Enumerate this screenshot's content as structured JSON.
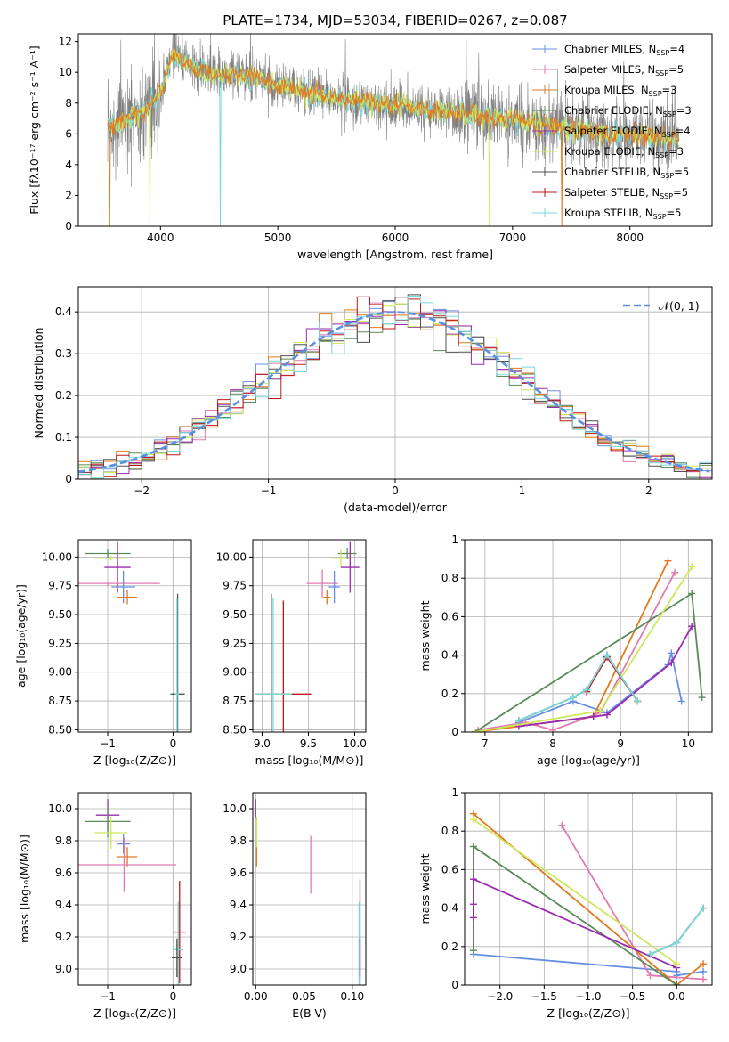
{
  "figure_title": "PLATE=1734, MJD=53034, FIBERID=0267, z=0.087",
  "colors": {
    "chabrier_miles": "#6a8fe0",
    "salpeter_miles": "#e07ab0",
    "kroupa_miles": "#e07a1f",
    "chabrier_elodie": "#5a8a5a",
    "salpeter_elodie": "#9a2ab0",
    "kroupa_elodie": "#cfe85a",
    "chabrier_stelib": "#505050",
    "salpeter_stelib": "#c01818",
    "kroupa_stelib": "#78d8d8",
    "normal": "#5b8fe0"
  },
  "chart_data": [
    {
      "type": "line",
      "id": "spectrum",
      "title": "PLATE=1734, MJD=53034, FIBERID=0267, z=0.087",
      "xlabel": "wavelength [Angstrom, rest frame]",
      "ylabel": "Flux [fλ10⁻¹⁷ erg cm⁻² s⁻¹ A⁻¹]",
      "xlim": [
        3300,
        8700
      ],
      "ylim": [
        0,
        12.5
      ],
      "xticks": [
        4000,
        5000,
        6000,
        7000,
        8000
      ],
      "yticks": [
        0,
        2,
        4,
        6,
        8,
        10,
        12
      ],
      "legend": [
        "Chabrier MILES, N_SSP=4",
        "Salpeter MILES, N_SSP=5",
        "Kroupa MILES, N_SSP=3",
        "Chabrier ELODIE, N_SSP=3",
        "Salpeter ELODIE, N_SSP=4",
        "Kroupa ELODIE, N_SSP=3",
        "Chabrier STELIB, N_SSP=5",
        "Salpeter STELIB, N_SSP=5",
        "Kroupa STELIB, N_SSP=5"
      ],
      "legend_display": [
        [
          "Chabrier MILES, N",
          "SSP",
          "=4"
        ],
        [
          "Salpeter MILES, N",
          "SSP",
          "=5"
        ],
        [
          "Kroupa MILES, N",
          "SSP",
          "=3"
        ],
        [
          "Chabrier ELODIE, N",
          "SSP",
          "=3"
        ],
        [
          "Salpeter ELODIE, N",
          "SSP",
          "=4"
        ],
        [
          "Kroupa ELODIE, N",
          "SSP",
          "=3"
        ],
        [
          "Chabrier STELIB, N",
          "SSP",
          "=5"
        ],
        [
          "Salpeter STELIB, N",
          "SSP",
          "=5"
        ],
        [
          "Kroupa STELIB, N",
          "SSP",
          "=5"
        ]
      ],
      "legend_placement": "upper right",
      "continuum": {
        "x": [
          3550,
          3700,
          3850,
          4000,
          4100,
          4300,
          4500,
          4800,
          5000,
          5300,
          5600,
          6000,
          6300,
          6600,
          6800,
          7000,
          7200,
          7450,
          7700,
          8000,
          8200,
          8420
        ],
        "y": [
          6.3,
          6.9,
          7.4,
          8.7,
          11.2,
          10.2,
          9.9,
          9.7,
          9.2,
          8.6,
          8.2,
          7.9,
          7.6,
          7.3,
          7.1,
          6.9,
          6.7,
          6.35,
          6.05,
          5.9,
          5.75,
          5.6
        ]
      },
      "data_noise_sigma": 1.4,
      "model_dips": [
        {
          "x": 3570,
          "series": "kroupa_miles"
        },
        {
          "x": 3910,
          "series": "kroupa_elodie"
        },
        {
          "x": 4510,
          "series": "kroupa_stelib"
        },
        {
          "x": 6800,
          "series": "kroupa_elodie"
        },
        {
          "x": 7420,
          "series": "kroupa_miles"
        }
      ]
    },
    {
      "type": "line",
      "id": "residuals",
      "xlabel": "(data-model)/error",
      "ylabel": "Normed distribution",
      "xlim": [
        -2.5,
        2.5
      ],
      "ylim": [
        0,
        0.46
      ],
      "xticks": [
        -2,
        -1,
        0,
        1,
        2
      ],
      "yticks": [
        0.0,
        0.1,
        0.2,
        0.3,
        0.4
      ],
      "grid": true,
      "legend": [
        "𝒩(0, 1)"
      ],
      "legend_placement": "upper right",
      "gaussian": {
        "mu": 0,
        "sigma": 1
      },
      "hist_bin_width": 0.1,
      "hist_scatter": 0.025
    },
    {
      "type": "scatter",
      "id": "age_vs_Z",
      "xlabel": "Z [log₁₀(Z/Z⊙)]",
      "ylabel": "age  [log₁₀(age/yr)]",
      "xlim": [
        -1.45,
        0.28
      ],
      "ylim": [
        8.48,
        10.15
      ],
      "xticks": [
        -1,
        0
      ],
      "yticks": [
        8.5,
        8.75,
        9.0,
        9.25,
        9.5,
        9.75,
        10.0
      ],
      "ytick_labels": [
        "8.50",
        "8.75",
        "9.00",
        "9.25",
        "9.50",
        "9.75",
        "10.00"
      ],
      "grid": true,
      "points": [
        {
          "series": "chabrier_elodie",
          "x": -1.0,
          "y": 10.03,
          "xerr": 0.35,
          "yerr": 0.04
        },
        {
          "series": "kroupa_elodie",
          "x": -0.95,
          "y": 9.99,
          "xerr": 0.25,
          "yerr": 0.02
        },
        {
          "series": "salpeter_elodie",
          "x": -0.85,
          "y": 9.91,
          "xerr": 0.2,
          "yerr": 0.22
        },
        {
          "series": "salpeter_miles",
          "x": -1.0,
          "y": 9.77,
          "xerr": 0.8,
          "yerr": 0.02
        },
        {
          "series": "chabrier_miles",
          "x": -0.76,
          "y": 9.74,
          "xerr": 0.18,
          "yerr": 0.14
        },
        {
          "series": "kroupa_miles",
          "x": -0.7,
          "y": 9.65,
          "xerr": 0.15,
          "yerr": 0.06
        },
        {
          "series": "chabrier_stelib",
          "x": 0.07,
          "y": 8.81,
          "xerr": 0.11,
          "yerr": 0.87
        },
        {
          "series": "kroupa_stelib",
          "x": 0.06,
          "y": 8.81,
          "xerr": 0.03,
          "yerr": 0.83
        }
      ]
    },
    {
      "type": "scatter",
      "id": "age_vs_mass",
      "xlabel": "mass [log₁₀(M/M⊙)]",
      "xlim": [
        8.9,
        10.12
      ],
      "ylim": [
        8.48,
        10.15
      ],
      "xticks": [
        9.0,
        9.5,
        10.0
      ],
      "xtick_labels": [
        "9.0",
        "9.5",
        "10.0"
      ],
      "yticks": [
        8.5,
        8.75,
        9.0,
        9.25,
        9.5,
        9.75,
        10.0
      ],
      "ytick_labels": [
        "8.50",
        "8.75",
        "9.00",
        "9.25",
        "9.50",
        "9.75",
        "10.00"
      ],
      "grid": true,
      "points": [
        {
          "series": "chabrier_elodie",
          "x": 9.92,
          "y": 10.03,
          "xerr": 0.1,
          "yerr": 0.05
        },
        {
          "series": "kroupa_elodie",
          "x": 9.85,
          "y": 9.99,
          "xerr": 0.1,
          "yerr": 0.08
        },
        {
          "series": "salpeter_elodie",
          "x": 9.95,
          "y": 9.91,
          "xerr": 0.1,
          "yerr": 0.22
        },
        {
          "series": "salpeter_miles",
          "x": 9.65,
          "y": 9.77,
          "xerr": 0.17,
          "yerr": 0.12
        },
        {
          "series": "chabrier_miles",
          "x": 9.78,
          "y": 9.74,
          "xerr": 0.06,
          "yerr": 0.14
        },
        {
          "series": "kroupa_miles",
          "x": 9.7,
          "y": 9.65,
          "xerr": 0.04,
          "yerr": 0.06
        },
        {
          "series": "chabrier_stelib",
          "x": 9.1,
          "y": 8.81,
          "xerr": 0.12,
          "yerr": 0.87
        },
        {
          "series": "salpeter_stelib",
          "x": 9.23,
          "y": 8.81,
          "xerr": 0.3,
          "yerr": 0.81
        },
        {
          "series": "kroupa_stelib",
          "x": 9.12,
          "y": 8.81,
          "xerr": 0.2,
          "yerr": 0.83
        }
      ]
    },
    {
      "type": "line",
      "id": "weight_vs_age",
      "xlabel": "age  [log₁₀(age/yr)]",
      "ylabel": "mass weight",
      "xlim": [
        6.7,
        10.35
      ],
      "ylim": [
        0,
        1.0
      ],
      "xticks": [
        7,
        8,
        9,
        10
      ],
      "yticks": [
        0.0,
        0.2,
        0.4,
        0.6,
        0.8,
        1.0
      ],
      "grid": true,
      "series": [
        {
          "series": "chabrier_miles",
          "x": [
            7.5,
            8.3,
            8.8,
            9.7,
            9.75,
            9.9
          ],
          "y": [
            0.05,
            0.16,
            0.1,
            0.35,
            0.41,
            0.16
          ]
        },
        {
          "series": "salpeter_miles",
          "x": [
            6.9,
            7.6,
            8.0,
            8.7,
            9.8
          ],
          "y": [
            0.01,
            0.05,
            0.01,
            0.1,
            0.83
          ]
        },
        {
          "series": "kroupa_miles",
          "x": [
            6.85,
            8.6,
            9.7
          ],
          "y": [
            0.0,
            0.08,
            0.89
          ]
        },
        {
          "series": "chabrier_elodie",
          "x": [
            6.85,
            10.05,
            10.2
          ],
          "y": [
            0.0,
            0.72,
            0.18
          ]
        },
        {
          "series": "salpeter_elodie",
          "x": [
            7.5,
            8.6,
            8.8,
            9.75,
            10.05
          ],
          "y": [
            0.03,
            0.08,
            0.09,
            0.36,
            0.55
          ]
        },
        {
          "series": "kroupa_elodie",
          "x": [
            6.85,
            8.7,
            10.05
          ],
          "y": [
            0.0,
            0.11,
            0.86
          ]
        },
        {
          "series": "chabrier_stelib",
          "x": [
            7.5,
            8.3,
            8.5,
            8.8,
            9.25
          ],
          "y": [
            0.06,
            0.18,
            0.22,
            0.4,
            0.16
          ]
        },
        {
          "series": "salpeter_stelib",
          "x": [
            8.5,
            8.8,
            9.25
          ],
          "y": [
            0.21,
            0.39,
            0.16
          ]
        },
        {
          "series": "kroupa_stelib",
          "x": [
            7.5,
            8.3,
            8.5,
            8.8,
            9.25
          ],
          "y": [
            0.06,
            0.18,
            0.22,
            0.4,
            0.16
          ]
        }
      ]
    },
    {
      "type": "scatter",
      "id": "mass_vs_Z",
      "xlabel": "Z [log₁₀(Z/Z⊙)]",
      "ylabel": "mass [log₁₀(M/M⊙)]",
      "xlim": [
        -1.45,
        0.28
      ],
      "ylim": [
        8.9,
        10.1
      ],
      "xticks": [
        -1,
        0
      ],
      "yticks": [
        9.0,
        9.2,
        9.4,
        9.6,
        9.8,
        10.0
      ],
      "ytick_labels": [
        "9.0",
        "9.2",
        "9.4",
        "9.6",
        "9.8",
        "10.0"
      ],
      "grid": true,
      "points": [
        {
          "series": "salpeter_elodie",
          "x": -1.0,
          "y": 9.96,
          "xerr": 0.18,
          "yerr": 0.1
        },
        {
          "series": "chabrier_elodie",
          "x": -1.0,
          "y": 9.92,
          "xerr": 0.35,
          "yerr": 0.1
        },
        {
          "series": "kroupa_elodie",
          "x": -0.95,
          "y": 9.85,
          "xerr": 0.25,
          "yerr": 0.1
        },
        {
          "series": "chabrier_miles",
          "x": -0.76,
          "y": 9.78,
          "xerr": 0.1,
          "yerr": 0.06
        },
        {
          "series": "kroupa_miles",
          "x": -0.7,
          "y": 9.7,
          "xerr": 0.15,
          "yerr": 0.06
        },
        {
          "series": "salpeter_miles",
          "x": -0.75,
          "y": 9.65,
          "xerr": 0.8,
          "yerr": 0.17
        },
        {
          "series": "salpeter_stelib",
          "x": 0.1,
          "y": 9.23,
          "xerr": 0.1,
          "yerr": 0.32
        },
        {
          "series": "kroupa_stelib",
          "x": 0.08,
          "y": 9.12,
          "xerr": 0.08,
          "yerr": 0.3
        },
        {
          "series": "chabrier_stelib",
          "x": 0.06,
          "y": 9.07,
          "xerr": 0.08,
          "yerr": 0.12
        }
      ]
    },
    {
      "type": "scatter",
      "id": "mass_vs_EBV",
      "xlabel": "E(B-V)",
      "xlim": [
        -0.003,
        0.114
      ],
      "ylim": [
        8.9,
        10.1
      ],
      "xticks": [
        0.0,
        0.05,
        0.1
      ],
      "xtick_labels": [
        "0.00",
        "0.05",
        "0.10"
      ],
      "yticks": [
        9.0,
        9.2,
        9.4,
        9.6,
        9.8,
        10.0
      ],
      "ytick_labels": [
        "9.0",
        "9.2",
        "9.4",
        "9.6",
        "9.8",
        "10.0"
      ],
      "grid": true,
      "points": [
        {
          "series": "salpeter_elodie",
          "x": 0.0,
          "y": 10.0,
          "xerr": 0,
          "yerr": 0.06
        },
        {
          "series": "kroupa_elodie",
          "x": 0.001,
          "y": 9.85,
          "xerr": 0,
          "yerr": 0.1
        },
        {
          "series": "kroupa_miles",
          "x": 0.001,
          "y": 9.7,
          "xerr": 0,
          "yerr": 0.06
        },
        {
          "series": "salpeter_miles",
          "x": 0.057,
          "y": 9.65,
          "xerr": 0,
          "yerr": 0.18
        },
        {
          "series": "salpeter_stelib",
          "x": 0.108,
          "y": 9.23,
          "xerr": 0,
          "yerr": 0.33
        },
        {
          "series": "kroupa_stelib",
          "x": 0.107,
          "y": 9.12,
          "xerr": 0,
          "yerr": 0.3
        },
        {
          "series": "chabrier_stelib",
          "x": 0.108,
          "y": 9.07,
          "xerr": 0,
          "yerr": 0.12
        }
      ]
    },
    {
      "type": "line",
      "id": "weight_vs_Z",
      "xlabel": "Z [log₁₀(Z/Z⊙)]",
      "ylabel": "mass weight",
      "xlim": [
        -2.4,
        0.4
      ],
      "ylim": [
        0,
        1.0
      ],
      "xticks": [
        -2.0,
        -1.5,
        -1.0,
        -0.5,
        0.0
      ],
      "xtick_labels": [
        "−2.0",
        "−1.5",
        "−1.0",
        "−0.5",
        "0.0"
      ],
      "yticks": [
        0.0,
        0.2,
        0.4,
        0.6,
        0.8,
        1.0
      ],
      "grid": true,
      "series": [
        {
          "series": "chabrier_miles",
          "x": [
            -2.3,
            0.0,
            0.0,
            0.3
          ],
          "y": [
            0.16,
            0.07,
            0.05,
            0.07
          ]
        },
        {
          "series": "salpeter_miles",
          "x": [
            -1.3,
            -0.3,
            0.3
          ],
          "y": [
            0.83,
            0.05,
            0.03
          ]
        },
        {
          "series": "kroupa_miles",
          "x": [
            -2.3,
            0.0,
            0.3
          ],
          "y": [
            0.89,
            0.0,
            0.11
          ]
        },
        {
          "series": "chabrier_elodie",
          "x": [
            -2.3,
            -2.3,
            0.0
          ],
          "y": [
            0.18,
            0.72,
            0.0
          ]
        },
        {
          "series": "salpeter_elodie",
          "x": [
            -2.3,
            -2.3,
            -2.3,
            0.0
          ],
          "y": [
            0.35,
            0.42,
            0.55,
            0.09
          ]
        },
        {
          "series": "kroupa_elodie",
          "x": [
            -2.3,
            0.0
          ],
          "y": [
            0.86,
            0.11
          ]
        },
        {
          "series": "chabrier_stelib",
          "x": [
            -0.3,
            0.0,
            0.3
          ],
          "y": [
            0.16,
            0.22,
            0.4
          ]
        },
        {
          "series": "kroupa_stelib",
          "x": [
            -0.3,
            0.0,
            0.3
          ],
          "y": [
            0.16,
            0.22,
            0.4
          ]
        }
      ]
    }
  ]
}
